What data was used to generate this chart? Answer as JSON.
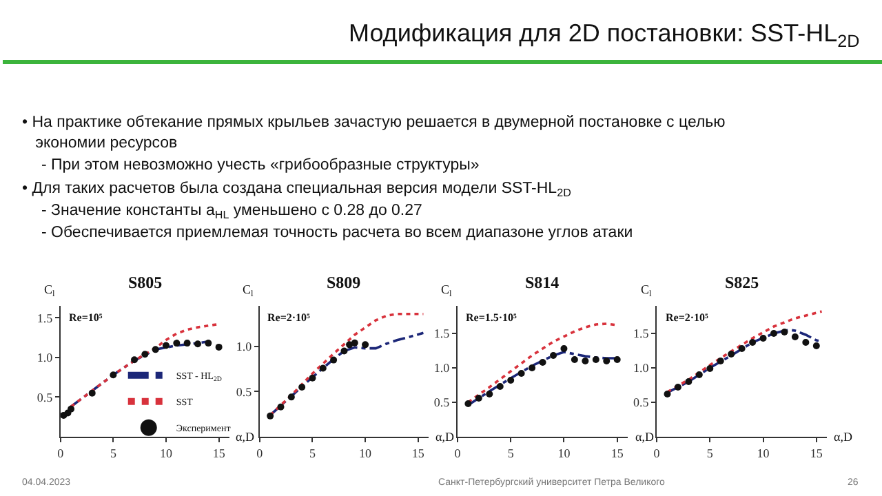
{
  "chart_data": [
    {
      "type": "other",
      "title": "Модификация для 2D постановки: SST-HL$_{2D}$",
      "annotations": [
        "• На практике обтекание прямых крыльев зачастую решается в двумерной постановке с целью экономии ресурсов",
        "- При этом невозможно учесть «грибообразные структуры»",
        "• Для таких расчетов была создана специальная версия модели SST-HL$_{2D}$",
        "- Значение константы a$_{HL}$ уменьшено с 0.28 до 0.27",
        "- Обеспечивается приемлемая точность расчета во всем диапазоне углов атаки",
        "04.04.2023",
        "Санкт-Петербургский университет Петра Великого",
        "26"
      ]
    },
    {
      "type": "line",
      "title": "S805",
      "xlabel": "α,D",
      "ylabel": "C$_{l}$",
      "annotations": [
        "Re=10⁵"
      ],
      "xlim": [
        0,
        16
      ],
      "xticks": [
        0,
        5,
        10,
        15
      ],
      "ylim": [
        0,
        1.65
      ],
      "yticks": [
        {
          "value": 0.5,
          "label": "0.5"
        },
        {
          "value": 1,
          "label": "1.0"
        },
        {
          "value": 1.5,
          "label": "1.5"
        }
      ],
      "legend": "bottom right",
      "series": [
        {
          "name": "SST - HL$_{2D}$",
          "type": "line",
          "line_style": "dashed",
          "color": "#1c2778",
          "x": [
            1,
            3,
            5,
            7,
            9,
            11,
            13,
            14
          ],
          "values": [
            0.38,
            0.58,
            0.78,
            0.96,
            1.1,
            1.15,
            1.18,
            1.2
          ]
        },
        {
          "name": "SST",
          "type": "line",
          "line_style": "dotted",
          "color": "#d8323c",
          "x": [
            1,
            3,
            5,
            7,
            8,
            9,
            10,
            11,
            12,
            13,
            14,
            15
          ],
          "values": [
            0.38,
            0.58,
            0.78,
            0.96,
            1.04,
            1.12,
            1.22,
            1.3,
            1.35,
            1.38,
            1.4,
            1.42
          ]
        },
        {
          "name": "Эксперимент",
          "type": "scatter",
          "marker": "circle",
          "color": "#111111",
          "x": [
            0.3,
            0.7,
            1,
            3,
            5,
            7,
            8,
            9,
            10,
            11,
            12,
            13,
            14,
            15
          ],
          "values": [
            0.27,
            0.3,
            0.35,
            0.55,
            0.78,
            0.97,
            1.04,
            1.1,
            1.15,
            1.18,
            1.18,
            1.17,
            1.18,
            1.13
          ]
        }
      ]
    },
    {
      "type": "line",
      "title": "S809",
      "xlabel": "α,D",
      "ylabel": "C$_{l}$",
      "annotations": [
        "Re=2·10⁵"
      ],
      "xlim": [
        0,
        16
      ],
      "xticks": [
        0,
        5,
        10,
        15
      ],
      "ylim": [
        0,
        1.45
      ],
      "yticks": [
        {
          "value": 0.5,
          "label": "0.5"
        },
        {
          "value": 1,
          "label": "1.0"
        }
      ],
      "legend": false,
      "series": [
        {
          "type": "line",
          "line_style": "dashed",
          "color": "#1c2778",
          "x": [
            1,
            3,
            5,
            7,
            8,
            9,
            10,
            11,
            12,
            13,
            14,
            15.5
          ],
          "values": [
            0.24,
            0.45,
            0.66,
            0.86,
            0.95,
            0.99,
            0.98,
            0.98,
            1.03,
            1.07,
            1.1,
            1.15
          ]
        },
        {
          "type": "line",
          "line_style": "dotted",
          "color": "#d8323c",
          "x": [
            1,
            3,
            5,
            7,
            9,
            11,
            12,
            13,
            14,
            15.5
          ],
          "values": [
            0.24,
            0.46,
            0.7,
            0.92,
            1.13,
            1.29,
            1.34,
            1.36,
            1.36,
            1.36
          ]
        },
        {
          "type": "scatter",
          "marker": "circle",
          "color": "#111111",
          "x": [
            1,
            2,
            3,
            4,
            5,
            6,
            7,
            8,
            8.5,
            9,
            10
          ],
          "values": [
            0.23,
            0.33,
            0.44,
            0.55,
            0.65,
            0.76,
            0.85,
            0.95,
            1.02,
            1.04,
            1.02
          ]
        }
      ]
    },
    {
      "type": "line",
      "title": "S814",
      "xlabel": "α,D",
      "ylabel": "C$_{l}$",
      "annotations": [
        "Re=1.5·10⁵"
      ],
      "xlim": [
        0,
        16
      ],
      "xticks": [
        0,
        5,
        10,
        15
      ],
      "ylim": [
        0,
        1.9
      ],
      "yticks": [
        {
          "value": 0.5,
          "label": "0.5"
        },
        {
          "value": 1,
          "label": "1.0"
        },
        {
          "value": 1.5,
          "label": "1.5"
        }
      ],
      "legend": false,
      "series": [
        {
          "type": "line",
          "line_style": "dashed",
          "color": "#1c2778",
          "x": [
            1,
            3,
            5,
            7,
            9,
            10,
            11,
            12,
            13,
            14,
            15
          ],
          "values": [
            0.46,
            0.66,
            0.85,
            1.03,
            1.18,
            1.23,
            1.2,
            1.17,
            1.15,
            1.14,
            1.14
          ]
        },
        {
          "type": "line",
          "line_style": "dotted",
          "color": "#d8323c",
          "x": [
            1,
            3,
            5,
            7,
            9,
            11,
            12,
            13,
            14,
            15
          ],
          "values": [
            0.5,
            0.72,
            0.95,
            1.18,
            1.38,
            1.53,
            1.59,
            1.63,
            1.64,
            1.62
          ]
        },
        {
          "type": "scatter",
          "marker": "circle",
          "color": "#111111",
          "x": [
            1,
            2,
            3,
            4,
            5,
            6,
            7,
            8,
            9,
            10,
            11,
            12,
            13,
            14,
            15
          ],
          "values": [
            0.48,
            0.56,
            0.62,
            0.73,
            0.82,
            0.92,
            1.0,
            1.08,
            1.18,
            1.28,
            1.12,
            1.1,
            1.12,
            1.1,
            1.12
          ]
        }
      ]
    },
    {
      "type": "line",
      "title": "S825",
      "xlabel": "α,D",
      "ylabel": "C$_{l}$",
      "annotations": [
        "Re=2·10⁵"
      ],
      "xlim": [
        0,
        16
      ],
      "xticks": [
        0,
        5,
        10,
        15
      ],
      "ylim": [
        0,
        1.9
      ],
      "yticks": [
        {
          "value": 0.5,
          "label": "0.5"
        },
        {
          "value": 1,
          "label": "1.0"
        },
        {
          "value": 1.5,
          "label": "1.5"
        }
      ],
      "legend": false,
      "series": [
        {
          "type": "line",
          "line_style": "dashed",
          "color": "#1c2778",
          "x": [
            1,
            3,
            5,
            7,
            9,
            11,
            12,
            12.5,
            13,
            14,
            15,
            15.5
          ],
          "values": [
            0.64,
            0.8,
            1.0,
            1.18,
            1.37,
            1.5,
            1.54,
            1.55,
            1.54,
            1.48,
            1.4,
            1.38
          ]
        },
        {
          "type": "line",
          "line_style": "dotted",
          "color": "#d8323c",
          "x": [
            1,
            3,
            5,
            7,
            9,
            11,
            13,
            15,
            15.5
          ],
          "values": [
            0.65,
            0.83,
            1.04,
            1.24,
            1.43,
            1.6,
            1.72,
            1.8,
            1.82
          ]
        },
        {
          "type": "scatter",
          "marker": "circle",
          "color": "#111111",
          "x": [
            1,
            2,
            3,
            4,
            5,
            6,
            7,
            8,
            9,
            10,
            11,
            12,
            13,
            14,
            15
          ],
          "values": [
            0.62,
            0.72,
            0.8,
            0.9,
            0.99,
            1.1,
            1.2,
            1.28,
            1.37,
            1.43,
            1.5,
            1.52,
            1.45,
            1.37,
            1.32
          ]
        }
      ]
    }
  ]
}
